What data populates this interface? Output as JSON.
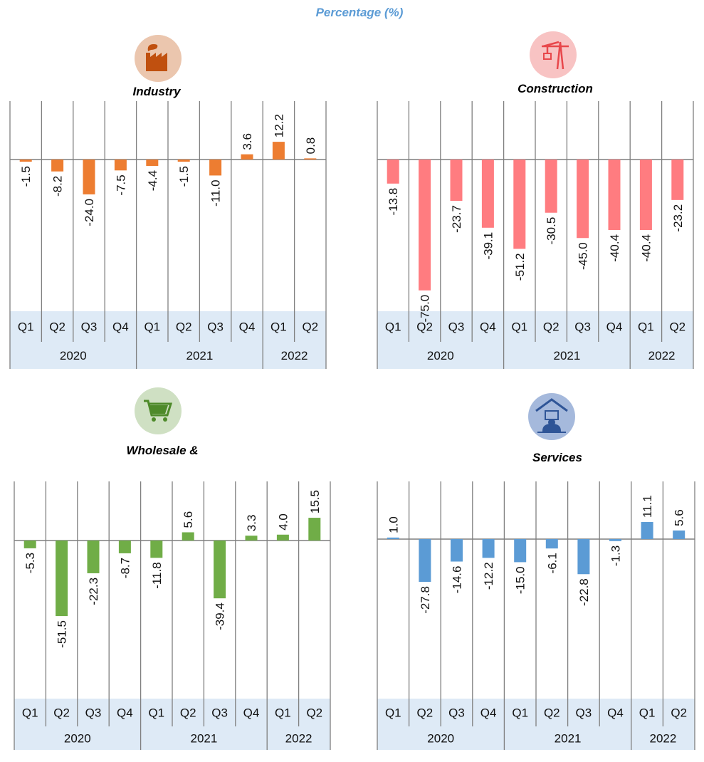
{
  "title": "Percentage (%)",
  "chart_data": [
    {
      "type": "bar",
      "title": "Industry",
      "icon": "factory-icon",
      "color": "#ED7D31",
      "icon_bg": "#EBC6AE",
      "icon_fg": "#C0500F",
      "categories": [
        "Q1",
        "Q2",
        "Q3",
        "Q4",
        "Q1",
        "Q2",
        "Q3",
        "Q4",
        "Q1",
        "Q2"
      ],
      "years": [
        {
          "label": "2020",
          "span": 4
        },
        {
          "label": "2021",
          "span": 4
        },
        {
          "label": "2022",
          "span": 2
        }
      ],
      "values": [
        -1.5,
        -8.2,
        -24.0,
        -7.5,
        -4.4,
        -1.5,
        -11.0,
        3.6,
        12.2,
        0.8
      ],
      "labels": [
        "-1.5",
        "-8.2",
        "-24.0",
        "-7.5",
        "-4.4",
        "-1.5",
        "-11.0",
        "3.6",
        "12.2",
        "0.8"
      ]
    },
    {
      "type": "bar",
      "title": "Construction",
      "icon": "crane-icon",
      "color": "#FF7C80",
      "icon_bg": "#F8C3C3",
      "icon_fg": "#E8474B",
      "categories": [
        "Q1",
        "Q2",
        "Q3",
        "Q4",
        "Q1",
        "Q2",
        "Q3",
        "Q4",
        "Q1",
        "Q2"
      ],
      "years": [
        {
          "label": "2020",
          "span": 4
        },
        {
          "label": "2021",
          "span": 4
        },
        {
          "label": "2022",
          "span": 2
        }
      ],
      "values": [
        -13.8,
        -75.0,
        -23.7,
        -39.1,
        -51.2,
        -30.5,
        -45.0,
        -40.4,
        -40.4,
        -23.2
      ],
      "labels": [
        "-13.8",
        "-75.0",
        "-23.7",
        "-39.1",
        "-51.2",
        "-30.5",
        "-45.0",
        "-40.4",
        "-40.4",
        "-23.2"
      ]
    },
    {
      "type": "bar",
      "title": "Wholesale &",
      "icon": "shopping-cart-icon",
      "color": "#70AD47",
      "icon_bg": "#CFE0C3",
      "icon_fg": "#4E8A2A",
      "categories": [
        "Q1",
        "Q2",
        "Q3",
        "Q4",
        "Q1",
        "Q2",
        "Q3",
        "Q4",
        "Q1",
        "Q2"
      ],
      "years": [
        {
          "label": "2020",
          "span": 4
        },
        {
          "label": "2021",
          "span": 4
        },
        {
          "label": "2022",
          "span": 2
        }
      ],
      "values": [
        -5.3,
        -51.5,
        -22.3,
        -8.7,
        -11.8,
        5.6,
        -39.4,
        3.3,
        4.0,
        15.5
      ],
      "labels": [
        "-5.3",
        "-51.5",
        "-22.3",
        "-8.7",
        "-11.8",
        "5.6",
        "-39.4",
        "3.3",
        "4.0",
        "15.5"
      ]
    },
    {
      "type": "bar",
      "title": "Services",
      "icon": "services-icon",
      "color": "#5B9BD5",
      "icon_bg": "#A5B9DC",
      "icon_fg": "#2F5597",
      "categories": [
        "Q1",
        "Q2",
        "Q3",
        "Q4",
        "Q1",
        "Q2",
        "Q3",
        "Q4",
        "Q1",
        "Q2"
      ],
      "years": [
        {
          "label": "2020",
          "span": 4
        },
        {
          "label": "2021",
          "span": 4
        },
        {
          "label": "2022",
          "span": 2
        }
      ],
      "values": [
        1.0,
        -27.8,
        -14.6,
        -12.2,
        -15.0,
        -6.1,
        -22.8,
        -1.3,
        11.1,
        5.6
      ],
      "labels": [
        "1.0",
        "-27.8",
        "-14.6",
        "-12.2",
        "-15.0",
        "-6.1",
        "-22.8",
        "-1.3",
        "11.1",
        "5.6"
      ]
    }
  ]
}
